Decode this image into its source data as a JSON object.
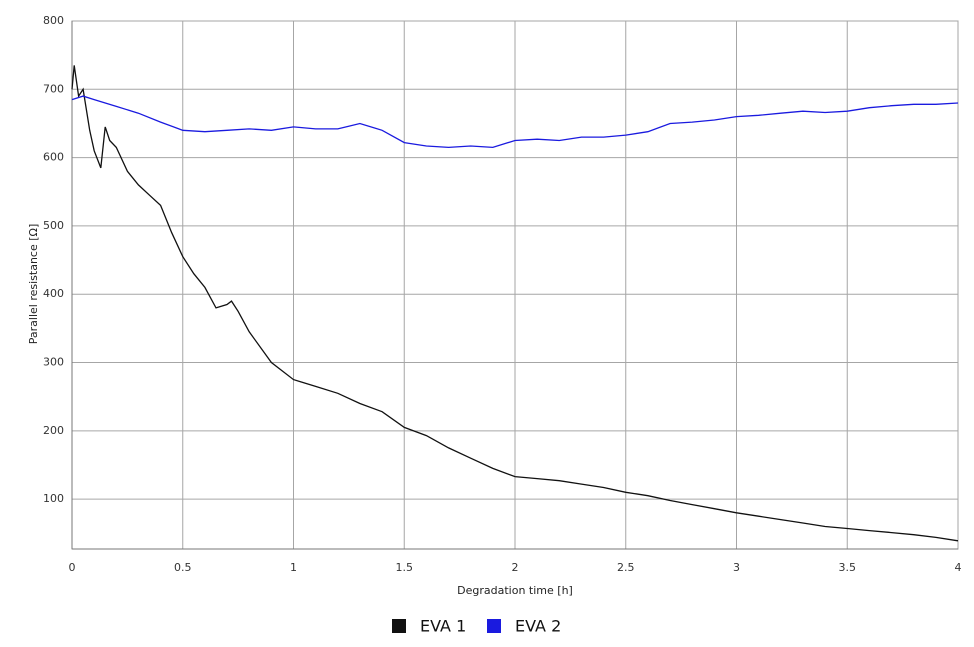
{
  "chart_data": {
    "type": "line",
    "x_label": "Degradation time [h]",
    "y_label": "Parallel resistance [Ω]",
    "xlim": [
      0,
      4
    ],
    "xticks": [
      0,
      0.5,
      1,
      1.5,
      2,
      2.5,
      3,
      3.5,
      4
    ],
    "ylim": [
      27,
      800
    ],
    "yticks": [
      100,
      200,
      300,
      400,
      500,
      600,
      700,
      800
    ],
    "grid": true,
    "legend": "bottom",
    "series": [
      {
        "name": "EVA 1",
        "color": "#111111",
        "x": [
          0,
          0.01,
          0.03,
          0.05,
          0.08,
          0.1,
          0.13,
          0.15,
          0.17,
          0.2,
          0.25,
          0.3,
          0.35,
          0.4,
          0.45,
          0.5,
          0.55,
          0.6,
          0.65,
          0.7,
          0.72,
          0.75,
          0.8,
          0.9,
          1.0,
          1.05,
          1.1,
          1.2,
          1.3,
          1.4,
          1.5,
          1.6,
          1.7,
          1.8,
          1.9,
          2.0,
          2.1,
          2.2,
          2.3,
          2.4,
          2.5,
          2.6,
          2.7,
          2.8,
          2.9,
          3.0,
          3.1,
          3.2,
          3.3,
          3.4,
          3.5,
          3.6,
          3.7,
          3.8,
          3.9,
          4.0
        ],
        "values": [
          700,
          735,
          690,
          700,
          640,
          610,
          585,
          645,
          625,
          615,
          580,
          560,
          545,
          530,
          490,
          455,
          430,
          410,
          380,
          385,
          390,
          375,
          345,
          300,
          275,
          270,
          265,
          255,
          240,
          228,
          205,
          193,
          175,
          160,
          145,
          133,
          130,
          127,
          122,
          117,
          110,
          105,
          98,
          92,
          86,
          80,
          75,
          70,
          65,
          60,
          57,
          54,
          51,
          48,
          44,
          39
        ]
      },
      {
        "name": "EVA 2",
        "color": "#1a1adf",
        "x": [
          0,
          0.05,
          0.1,
          0.2,
          0.3,
          0.4,
          0.5,
          0.6,
          0.7,
          0.8,
          0.9,
          1.0,
          1.1,
          1.2,
          1.3,
          1.4,
          1.5,
          1.6,
          1.7,
          1.8,
          1.9,
          2.0,
          2.1,
          2.2,
          2.3,
          2.4,
          2.5,
          2.6,
          2.7,
          2.8,
          2.9,
          3.0,
          3.1,
          3.2,
          3.3,
          3.4,
          3.5,
          3.6,
          3.7,
          3.8,
          3.9,
          4.0
        ],
        "values": [
          685,
          690,
          685,
          675,
          665,
          652,
          640,
          638,
          640,
          642,
          640,
          645,
          642,
          642,
          650,
          640,
          622,
          617,
          615,
          617,
          615,
          625,
          627,
          625,
          630,
          630,
          633,
          638,
          650,
          652,
          655,
          660,
          662,
          665,
          668,
          666,
          668,
          673,
          676,
          678,
          678,
          680
        ]
      }
    ]
  }
}
